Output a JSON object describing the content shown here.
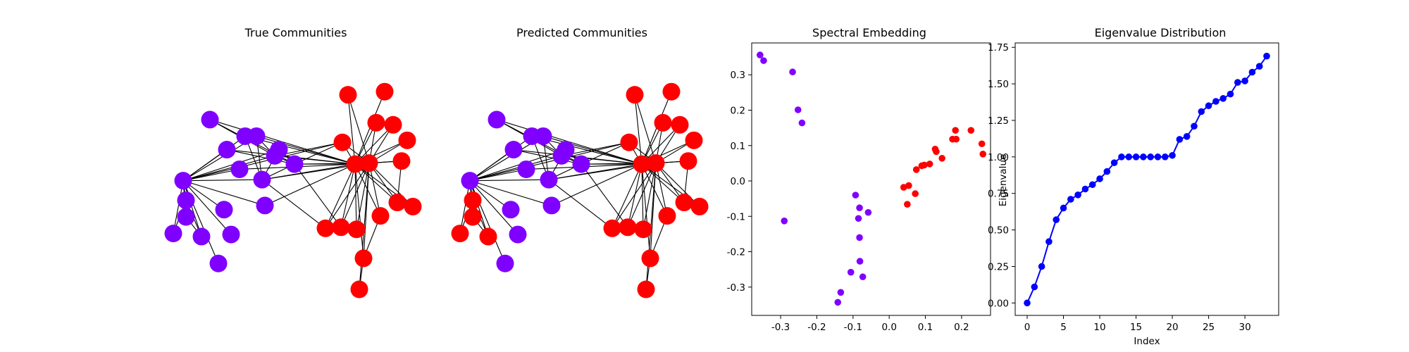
{
  "colors": {
    "purple": "#8000ff",
    "red": "#ff0000",
    "blue": "#0000ff",
    "edge": "#000000",
    "axis": "#000000"
  },
  "chart_data": [
    {
      "type": "network",
      "title": "True Communities",
      "nodes": [
        {
          "id": 0,
          "x": -0.85,
          "y": 0.05,
          "c": 0
        },
        {
          "id": 1,
          "x": -0.66,
          "y": 0.64,
          "c": 0
        },
        {
          "id": 2,
          "x": -0.83,
          "y": -0.14,
          "c": 0
        },
        {
          "id": 3,
          "x": -0.54,
          "y": 0.35,
          "c": 0
        },
        {
          "id": 4,
          "x": -0.56,
          "y": -0.23,
          "c": 0
        },
        {
          "id": 5,
          "x": -0.41,
          "y": 0.48,
          "c": 0
        },
        {
          "id": 6,
          "x": -0.33,
          "y": 0.48,
          "c": 0
        },
        {
          "id": 7,
          "x": -0.29,
          "y": 0.06,
          "c": 0
        },
        {
          "id": 8,
          "x": -0.2,
          "y": 0.29,
          "c": 0
        },
        {
          "id": 9,
          "x": -0.06,
          "y": 0.21,
          "c": 0
        },
        {
          "id": 10,
          "x": -0.17,
          "y": 0.35,
          "c": 0
        },
        {
          "id": 11,
          "x": -0.45,
          "y": 0.16,
          "c": 0
        },
        {
          "id": 12,
          "x": -0.27,
          "y": -0.19,
          "c": 0
        },
        {
          "id": 13,
          "x": -0.51,
          "y": -0.47,
          "c": 0
        },
        {
          "id": 14,
          "x": -0.72,
          "y": -0.49,
          "c": 0
        },
        {
          "id": 15,
          "x": -0.83,
          "y": -0.3,
          "c": 0
        },
        {
          "id": 16,
          "x": -0.6,
          "y": -0.75,
          "c": 0
        },
        {
          "id": 17,
          "x": -0.92,
          "y": -0.46,
          "c": 0
        },
        {
          "id": 18,
          "x": 0.32,
          "y": 0.88,
          "c": 1
        },
        {
          "id": 19,
          "x": 0.58,
          "y": 0.91,
          "c": 1
        },
        {
          "id": 20,
          "x": 0.52,
          "y": 0.61,
          "c": 1
        },
        {
          "id": 21,
          "x": 0.64,
          "y": 0.59,
          "c": 1
        },
        {
          "id": 22,
          "x": 0.74,
          "y": 0.44,
          "c": 1
        },
        {
          "id": 23,
          "x": 0.28,
          "y": 0.42,
          "c": 1
        },
        {
          "id": 24,
          "x": 0.7,
          "y": 0.24,
          "c": 1
        },
        {
          "id": 25,
          "x": 0.37,
          "y": 0.21,
          "c": 1
        },
        {
          "id": 26,
          "x": 0.47,
          "y": 0.22,
          "c": 1
        },
        {
          "id": 27,
          "x": 0.67,
          "y": -0.16,
          "c": 1
        },
        {
          "id": 28,
          "x": 0.78,
          "y": -0.2,
          "c": 1
        },
        {
          "id": 29,
          "x": 0.55,
          "y": -0.29,
          "c": 1
        },
        {
          "id": 30,
          "x": 0.16,
          "y": -0.41,
          "c": 1
        },
        {
          "id": 31,
          "x": 0.27,
          "y": -0.4,
          "c": 1
        },
        {
          "id": 32,
          "x": 0.38,
          "y": -0.42,
          "c": 1
        },
        {
          "id": 33,
          "x": 0.43,
          "y": -0.7,
          "c": 1
        },
        {
          "id": 34,
          "x": 0.4,
          "y": -1.0,
          "c": 1
        }
      ],
      "edges": [
        [
          0,
          2
        ],
        [
          0,
          4
        ],
        [
          0,
          3
        ],
        [
          0,
          5
        ],
        [
          0,
          6
        ],
        [
          0,
          7
        ],
        [
          0,
          8
        ],
        [
          0,
          10
        ],
        [
          0,
          11
        ],
        [
          0,
          12
        ],
        [
          0,
          13
        ],
        [
          0,
          14
        ],
        [
          0,
          15
        ],
        [
          0,
          16
        ],
        [
          0,
          17
        ],
        [
          0,
          23
        ],
        [
          1,
          8
        ],
        [
          1,
          9
        ],
        [
          2,
          15
        ],
        [
          2,
          17
        ],
        [
          2,
          14
        ],
        [
          3,
          9
        ],
        [
          5,
          7
        ],
        [
          6,
          7
        ],
        [
          6,
          8
        ],
        [
          7,
          9
        ],
        [
          7,
          10
        ],
        [
          8,
          9
        ],
        [
          9,
          10
        ],
        [
          8,
          23
        ],
        [
          14,
          15
        ],
        [
          25,
          1
        ],
        [
          25,
          3
        ],
        [
          25,
          5
        ],
        [
          25,
          6
        ],
        [
          25,
          7
        ],
        [
          25,
          8
        ],
        [
          25,
          9
        ],
        [
          25,
          11
        ],
        [
          25,
          12
        ],
        [
          25,
          18
        ],
        [
          25,
          19
        ],
        [
          25,
          20
        ],
        [
          25,
          21
        ],
        [
          25,
          22
        ],
        [
          25,
          23
        ],
        [
          25,
          24
        ],
        [
          25,
          27
        ],
        [
          25,
          28
        ],
        [
          25,
          29
        ],
        [
          25,
          30
        ],
        [
          25,
          31
        ],
        [
          25,
          32
        ],
        [
          25,
          33
        ],
        [
          26,
          7
        ],
        [
          26,
          9
        ],
        [
          26,
          18
        ],
        [
          26,
          20
        ],
        [
          26,
          21
        ],
        [
          26,
          22
        ],
        [
          26,
          23
        ],
        [
          26,
          24
        ],
        [
          26,
          27
        ],
        [
          26,
          28
        ],
        [
          26,
          29
        ],
        [
          26,
          30
        ],
        [
          26,
          31
        ],
        [
          26,
          32
        ],
        [
          26,
          33
        ],
        [
          26,
          34
        ],
        [
          20,
          21
        ],
        [
          33,
          34
        ],
        [
          30,
          31
        ],
        [
          29,
          33
        ],
        [
          23,
          9
        ],
        [
          30,
          7
        ],
        [
          31,
          9
        ],
        [
          27,
          24
        ]
      ]
    },
    {
      "type": "network",
      "title": "Predicted Communities",
      "node_colors": [
        0,
        0,
        1,
        0,
        0,
        0,
        0,
        0,
        0,
        0,
        0,
        0,
        0,
        0,
        1,
        1,
        0,
        1,
        1,
        1,
        1,
        1,
        1,
        1,
        1,
        1,
        1,
        1,
        1,
        1,
        1,
        1,
        1,
        1,
        1
      ]
    },
    {
      "type": "scatter",
      "title": "Spectral Embedding",
      "xlabel": "",
      "ylabel": "",
      "xlim": [
        -0.38,
        0.28
      ],
      "ylim": [
        -0.38,
        0.39
      ],
      "xticks": [
        "-0.3",
        "-0.2",
        "-0.1",
        "0.0",
        "0.1",
        "0.2"
      ],
      "yticks": [
        "-0.3",
        "-0.2",
        "-0.1",
        "0.0",
        "0.1",
        "0.2",
        "0.3"
      ],
      "series": [
        {
          "color_key": "purple",
          "points": [
            [
              -0.357,
              0.356
            ],
            [
              -0.347,
              0.34
            ],
            [
              -0.267,
              0.308
            ],
            [
              -0.252,
              0.201
            ],
            [
              -0.241,
              0.164
            ],
            [
              -0.29,
              -0.113
            ],
            [
              -0.093,
              -0.04
            ],
            [
              -0.082,
              -0.076
            ],
            [
              -0.085,
              -0.106
            ],
            [
              -0.058,
              -0.089
            ],
            [
              -0.082,
              -0.16
            ],
            [
              -0.081,
              -0.227
            ],
            [
              -0.106,
              -0.258
            ],
            [
              -0.073,
              -0.271
            ],
            [
              -0.134,
              -0.315
            ],
            [
              -0.142,
              -0.343
            ]
          ]
        },
        {
          "color_key": "red",
          "points": [
            [
              0.04,
              -0.018
            ],
            [
              0.054,
              -0.013
            ],
            [
              0.072,
              -0.036
            ],
            [
              0.05,
              -0.066
            ],
            [
              0.075,
              0.032
            ],
            [
              0.09,
              0.043
            ],
            [
              0.097,
              0.045
            ],
            [
              0.112,
              0.048
            ],
            [
              0.127,
              0.09
            ],
            [
              0.13,
              0.083
            ],
            [
              0.146,
              0.064
            ],
            [
              0.175,
              0.118
            ],
            [
              0.183,
              0.143
            ],
            [
              0.185,
              0.118
            ],
            [
              0.226,
              0.143
            ],
            [
              0.256,
              0.105
            ],
            [
              0.259,
              0.076
            ]
          ]
        }
      ]
    },
    {
      "type": "line",
      "title": "Eigenvalue Distribution",
      "xlabel": "Index",
      "ylabel": "Eigenvalue",
      "xlim": [
        -1.65,
        34.65
      ],
      "ylim": [
        -0.085,
        1.78
      ],
      "xticks": [
        "0",
        "5",
        "10",
        "15",
        "20",
        "25",
        "30"
      ],
      "yticks": [
        "0.00",
        "0.25",
        "0.50",
        "0.75",
        "1.00",
        "1.25",
        "1.50",
        "1.75"
      ],
      "x": [
        0,
        1,
        2,
        3,
        4,
        5,
        6,
        7,
        8,
        9,
        10,
        11,
        12,
        13,
        14,
        15,
        16,
        17,
        18,
        19,
        20,
        21,
        22,
        23,
        24,
        25,
        26,
        27,
        28,
        29,
        30,
        31,
        32,
        33
      ],
      "values": [
        0.0,
        0.11,
        0.25,
        0.42,
        0.57,
        0.65,
        0.71,
        0.74,
        0.78,
        0.81,
        0.85,
        0.9,
        0.96,
        1.0,
        1.0,
        1.0,
        1.0,
        1.0,
        1.0,
        1.0,
        1.01,
        1.12,
        1.14,
        1.21,
        1.31,
        1.35,
        1.38,
        1.4,
        1.43,
        1.51,
        1.52,
        1.58,
        1.62,
        1.69
      ]
    }
  ]
}
